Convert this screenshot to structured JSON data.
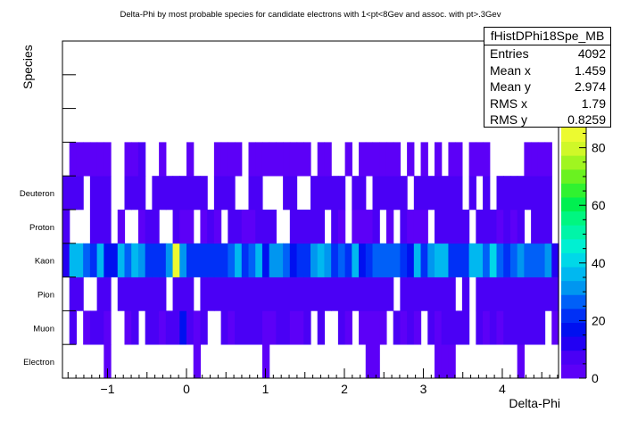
{
  "chart_data": {
    "type": "heatmap",
    "title": "Delta-Phi by most probable species for candidate electrons with 1<pt<8Gev and assoc. with pt>.3Gev",
    "xlabel": "Delta-Phi",
    "ylabel": "Species",
    "xlim": [
      -1.5708,
      4.7124
    ],
    "x_ticks": [
      "−1",
      "0",
      "1",
      "2",
      "3",
      "4"
    ],
    "y_categories": [
      "Electron",
      "Muon",
      "Pion",
      "Kaon",
      "Proton",
      "Deuteron"
    ],
    "z_ticks": [
      "0",
      "20",
      "40",
      "60",
      "80"
    ],
    "zlim": [
      0,
      87
    ],
    "color_scale": [
      "#5c00f7",
      "#4a00f5",
      "#2200f3",
      "#0010f0",
      "#0030f6",
      "#0060f8",
      "#0096f0",
      "#00b8f0",
      "#00d8e8",
      "#00f0d2",
      "#00f5a8",
      "#00f680",
      "#00f050",
      "#30f230",
      "#6af220",
      "#a0f520",
      "#d0f828",
      "#ecfa30"
    ],
    "peak": {
      "species": "Kaon",
      "delta_phi": 0.0,
      "value": 87
    },
    "grid": false,
    "stats": {
      "name": "fHistDPhi18Spe_MB",
      "entries_label": "Entries",
      "entries": "4092",
      "meanx_label": "Mean x",
      "meanx": "1.459",
      "meany_label": "Mean y",
      "meany": "2.974",
      "rmsx_label": "RMS x",
      "rmsx": "1.79",
      "rmsy_label": "RMS y",
      "rmsy": "0.8259"
    }
  }
}
